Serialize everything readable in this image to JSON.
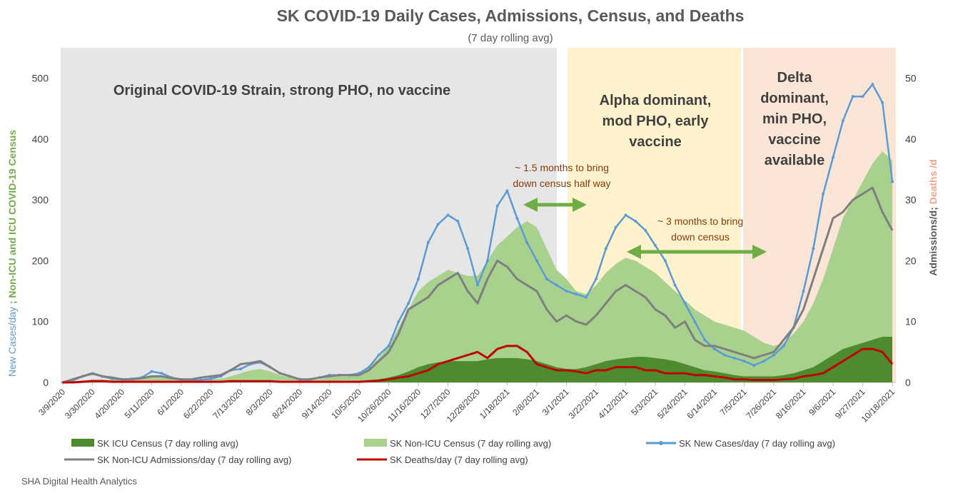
{
  "chart_data": {
    "type": "combo",
    "title": "SK COVID-19 Daily Cases, Admissions, Census, and Deaths",
    "subtitle": "(7 day rolling avg)",
    "y_label": [
      "New Cases/day",
      " ; Non-ICU and ICU COVID-19  Census"
    ],
    "y2_label": [
      "Admissions/d;",
      " Deaths /d"
    ],
    "source": "SHA Digital Health Analytics",
    "categories": [
      "3/9/2020",
      null,
      null,
      "3/30/2020",
      null,
      null,
      "4/20/2020",
      null,
      null,
      "5/11/2020",
      null,
      null,
      "6/1/2020",
      null,
      null,
      "6/22/2020",
      null,
      null,
      "7/13/2020",
      null,
      null,
      "8/3/2020",
      null,
      null,
      "8/24/2020",
      null,
      null,
      "9/14/2020",
      null,
      null,
      "10/5/2020",
      null,
      null,
      "10/26/2020",
      null,
      null,
      "11/16/2020",
      null,
      null,
      "12/7/2020",
      null,
      null,
      "12/28/2020",
      null,
      null,
      "1/18/2021",
      null,
      null,
      "2/8/2021",
      null,
      null,
      "3/1/2021",
      null,
      null,
      "3/22/2021",
      null,
      null,
      "4/12/2021",
      null,
      null,
      "5/3/2021",
      null,
      null,
      "5/24/2021",
      null,
      null,
      "6/14/2021",
      null,
      null,
      "7/5/2021",
      null,
      null,
      "7/26/2021",
      null,
      null,
      "8/16/2021",
      null,
      null,
      "9/6/2021",
      null,
      null,
      "9/27/2021",
      null,
      null,
      "10/18/2021"
    ],
    "ylim": [
      0,
      550
    ],
    "yticks": [
      0,
      100,
      200,
      300,
      400,
      500
    ],
    "y2lim": [
      0,
      55
    ],
    "y2ticks": [
      0,
      10,
      20,
      30,
      40,
      50
    ],
    "series": [
      {
        "name": "SK ICU Census (7 day rolling avg)",
        "kind": "area",
        "color": "#4e8a2e",
        "values": [
          0,
          0,
          1,
          1,
          1,
          1,
          1,
          1,
          1,
          1,
          1,
          1,
          1,
          1,
          1,
          1,
          1,
          1,
          2,
          2,
          2,
          2,
          2,
          1,
          1,
          1,
          1,
          1,
          2,
          2,
          2,
          3,
          5,
          8,
          12,
          18,
          25,
          30,
          33,
          35,
          35,
          35,
          35,
          38,
          40,
          40,
          40,
          38,
          35,
          30,
          25,
          22,
          22,
          25,
          30,
          35,
          38,
          40,
          42,
          42,
          40,
          38,
          35,
          30,
          25,
          20,
          18,
          15,
          12,
          10,
          10,
          10,
          10,
          12,
          15,
          20,
          25,
          35,
          45,
          55,
          60,
          65,
          70,
          75,
          75
        ]
      },
      {
        "name": "SK Non-ICU Census (7 day rolling avg)",
        "kind": "area",
        "color": "#a9d18e",
        "values": [
          0,
          1,
          3,
          5,
          5,
          4,
          4,
          4,
          5,
          8,
          8,
          6,
          5,
          4,
          4,
          5,
          6,
          10,
          15,
          20,
          22,
          18,
          12,
          8,
          5,
          4,
          5,
          8,
          10,
          10,
          15,
          25,
          40,
          60,
          90,
          120,
          150,
          165,
          175,
          185,
          180,
          175,
          175,
          200,
          225,
          240,
          255,
          265,
          255,
          220,
          185,
          170,
          150,
          145,
          160,
          180,
          195,
          205,
          200,
          190,
          180,
          165,
          150,
          135,
          120,
          110,
          100,
          95,
          90,
          85,
          75,
          65,
          60,
          65,
          80,
          100,
          130,
          170,
          220,
          270,
          300,
          330,
          360,
          380,
          365
        ]
      },
      {
        "name": "SK New Cases/day (7 day rolling avg)",
        "kind": "line-markers",
        "color": "#5b9bd5",
        "values": [
          0,
          3,
          10,
          14,
          10,
          6,
          5,
          6,
          8,
          18,
          15,
          8,
          5,
          3,
          4,
          6,
          10,
          20,
          22,
          30,
          33,
          25,
          15,
          10,
          5,
          5,
          8,
          12,
          12,
          12,
          15,
          25,
          45,
          60,
          100,
          130,
          170,
          230,
          260,
          275,
          265,
          220,
          160,
          200,
          290,
          315,
          270,
          230,
          200,
          170,
          160,
          150,
          145,
          140,
          170,
          220,
          255,
          275,
          265,
          250,
          225,
          200,
          160,
          130,
          100,
          70,
          55,
          45,
          40,
          35,
          28,
          35,
          45,
          60,
          90,
          150,
          220,
          310,
          370,
          430,
          470,
          470,
          490,
          460,
          330
        ]
      },
      {
        "name": "SK Non-ICU Admissions/day (7 day rolling avg)",
        "kind": "line",
        "axis": "y2",
        "color": "#7f7f7f",
        "values": [
          0,
          0.5,
          1,
          1.5,
          1,
          0.8,
          0.5,
          0.5,
          0.7,
          1,
          1,
          0.7,
          0.5,
          0.5,
          0.8,
          1,
          1.2,
          2,
          3,
          3.2,
          3.5,
          2.5,
          1.5,
          1,
          0.5,
          0.5,
          0.8,
          1,
          1.2,
          1.2,
          1.2,
          2,
          3.5,
          5,
          8,
          12,
          13,
          14,
          16,
          17,
          18,
          15,
          13,
          17,
          20,
          19,
          17,
          16,
          15,
          12,
          10,
          11,
          10,
          9.5,
          11,
          13,
          15,
          16,
          15,
          14,
          12,
          11,
          9,
          10,
          7,
          6,
          6,
          5.5,
          5,
          4.5,
          4,
          4.5,
          5,
          7,
          9,
          12,
          17,
          22,
          27,
          28,
          30,
          31,
          32,
          28,
          25
        ]
      },
      {
        "name": "SK Deaths/day (7 day rolling avg)",
        "kind": "line",
        "axis": "y2",
        "color": "#c00000",
        "values": [
          0,
          0,
          0.1,
          0.2,
          0.2,
          0.1,
          0.1,
          0.1,
          0.1,
          0.1,
          0.1,
          0.1,
          0.1,
          0.1,
          0.1,
          0.1,
          0.1,
          0.2,
          0.2,
          0.2,
          0.2,
          0.2,
          0.1,
          0.1,
          0.1,
          0.1,
          0.1,
          0.1,
          0.1,
          0.1,
          0.1,
          0.2,
          0.3,
          0.5,
          0.8,
          1,
          1.5,
          2,
          3,
          3.5,
          4,
          4.5,
          5,
          4,
          5.5,
          6,
          6,
          5,
          3,
          2.5,
          2,
          2,
          1.8,
          1.5,
          2,
          2,
          2.5,
          2.5,
          2.5,
          2,
          2,
          1.5,
          1.5,
          1.5,
          1.2,
          1.2,
          1,
          0.8,
          0.5,
          0.5,
          0.4,
          0.4,
          0.4,
          0.5,
          0.6,
          1,
          1.2,
          1.5,
          2.5,
          3.5,
          4.5,
          5.5,
          5.5,
          5,
          3
        ]
      }
    ],
    "regions": [
      {
        "lines": [
          "Original COVID-19 Strain, strong PHO, no vaccine"
        ],
        "color": "#e7e6e6"
      },
      {
        "lines": [
          "Alpha dominant,",
          "mod PHO, early",
          "vaccine"
        ],
        "color": "#fff2cc"
      },
      {
        "lines": [
          "Delta",
          "dominant,",
          "min PHO,",
          "vaccine",
          "available"
        ],
        "color": "#fbe5d6"
      }
    ],
    "annotations": [
      {
        "lines": [
          "~ 1.5 months to bring",
          "down census half way"
        ]
      },
      {
        "lines": [
          "~ 3 months to bring",
          "down census"
        ]
      }
    ]
  }
}
